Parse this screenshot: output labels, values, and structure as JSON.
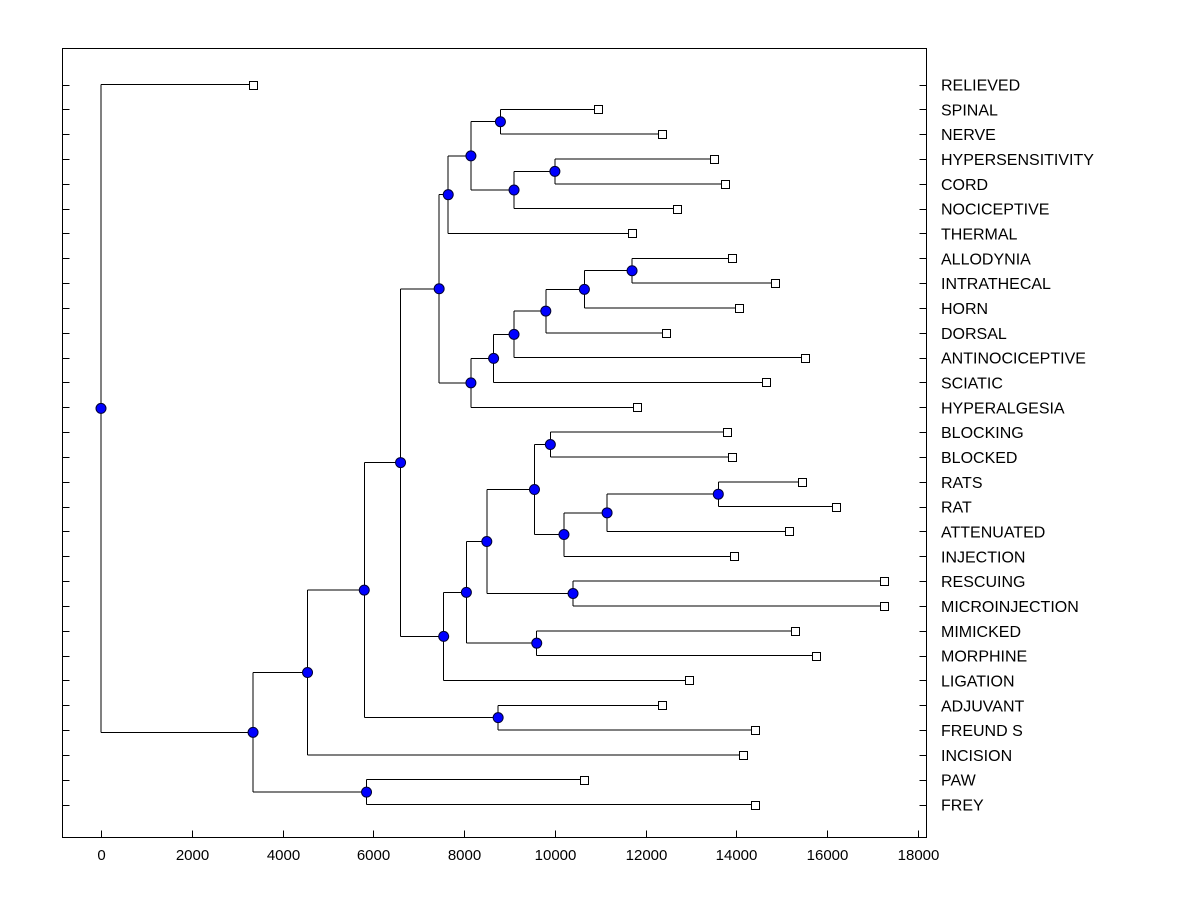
{
  "chart_data": {
    "type": "dendrogram",
    "title": "",
    "xlabel": "",
    "ylabel": "",
    "xlim": [
      -850,
      18000
    ],
    "x_ticks": [
      0,
      2000,
      4000,
      6000,
      8000,
      10000,
      12000,
      14000,
      16000,
      18000
    ],
    "x_tick_labels": [
      "0",
      "2000",
      "4000",
      "6000",
      "8000",
      "10000",
      "12000",
      "14000",
      "16000",
      "18000"
    ],
    "leaves": [
      {
        "label": "RELIEVED",
        "value": 3350
      },
      {
        "label": "SPINAL",
        "value": 10950
      },
      {
        "label": "NERVE",
        "value": 12350
      },
      {
        "label": "HYPERSENSITIVITY",
        "value": 13500
      },
      {
        "label": "CORD",
        "value": 13750
      },
      {
        "label": "NOCICEPTIVE",
        "value": 12700
      },
      {
        "label": "THERMAL",
        "value": 11700
      },
      {
        "label": "ALLODYNIA",
        "value": 13900
      },
      {
        "label": "INTRATHECAL",
        "value": 14850
      },
      {
        "label": "HORN",
        "value": 14050
      },
      {
        "label": "DORSAL",
        "value": 12450
      },
      {
        "label": "ANTINOCICEPTIVE",
        "value": 15500
      },
      {
        "label": "SCIATIC",
        "value": 14650
      },
      {
        "label": "HYPERALGESIA",
        "value": 11800
      },
      {
        "label": "BLOCKING",
        "value": 13800
      },
      {
        "label": "BLOCKED",
        "value": 13900
      },
      {
        "label": "RATS",
        "value": 15450
      },
      {
        "label": "RAT",
        "value": 16200
      },
      {
        "label": "ATTENUATED",
        "value": 15150
      },
      {
        "label": "INJECTION",
        "value": 13950
      },
      {
        "label": "RESCUING",
        "value": 17250
      },
      {
        "label": "MICROINJECTION",
        "value": 17250
      },
      {
        "label": "MIMICKED",
        "value": 15300
      },
      {
        "label": "MORPHINE",
        "value": 15750
      },
      {
        "label": "LIGATION",
        "value": 12950
      },
      {
        "label": "ADJUVANT",
        "value": 12350
      },
      {
        "label": "FREUND S",
        "value": 14400
      },
      {
        "label": "INCISION",
        "value": 14150
      },
      {
        "label": "PAW",
        "value": 10650
      },
      {
        "label": "FREY",
        "value": 14400
      }
    ],
    "merges": [
      {
        "id": "m1",
        "value": 8800,
        "children": [
          "L1",
          "L2"
        ]
      },
      {
        "id": "m2",
        "value": 10000,
        "children": [
          "L3",
          "L4"
        ]
      },
      {
        "id": "m3",
        "value": 9100,
        "children": [
          "m2",
          "L5"
        ]
      },
      {
        "id": "m4",
        "value": 8150,
        "children": [
          "m1",
          "m3"
        ]
      },
      {
        "id": "m5",
        "value": 7650,
        "children": [
          "m4",
          "L6"
        ]
      },
      {
        "id": "m6",
        "value": 11700,
        "children": [
          "L7",
          "L8"
        ]
      },
      {
        "id": "m7",
        "value": 10650,
        "children": [
          "m6",
          "L9"
        ]
      },
      {
        "id": "m8",
        "value": 9800,
        "children": [
          "m7",
          "L10"
        ]
      },
      {
        "id": "m9",
        "value": 9100,
        "children": [
          "m8",
          "L11"
        ]
      },
      {
        "id": "m10",
        "value": 8650,
        "children": [
          "m9",
          "L12"
        ]
      },
      {
        "id": "m11",
        "value": 8150,
        "children": [
          "m10",
          "L13"
        ]
      },
      {
        "id": "m12",
        "value": 7450,
        "children": [
          "m5",
          "m11"
        ]
      },
      {
        "id": "m13",
        "value": 9900,
        "children": [
          "L14",
          "L15"
        ]
      },
      {
        "id": "m14",
        "value": 13600,
        "children": [
          "L16",
          "L17"
        ]
      },
      {
        "id": "m15",
        "value": 11150,
        "children": [
          "m14",
          "L18"
        ]
      },
      {
        "id": "m16",
        "value": 10200,
        "children": [
          "m15",
          "L19"
        ]
      },
      {
        "id": "m17",
        "value": 9550,
        "children": [
          "m13",
          "m16"
        ]
      },
      {
        "id": "m18",
        "value": 10400,
        "children": [
          "L20",
          "L21"
        ]
      },
      {
        "id": "m19",
        "value": 8500,
        "children": [
          "m17",
          "m18"
        ]
      },
      {
        "id": "m20",
        "value": 9600,
        "children": [
          "L22",
          "L23"
        ]
      },
      {
        "id": "m21",
        "value": 8050,
        "children": [
          "m19",
          "m20"
        ]
      },
      {
        "id": "m22",
        "value": 7550,
        "children": [
          "m21",
          "L24"
        ]
      },
      {
        "id": "m23",
        "value": 6600,
        "children": [
          "m12",
          "m22"
        ]
      },
      {
        "id": "m24",
        "value": 8750,
        "children": [
          "L25",
          "L26"
        ]
      },
      {
        "id": "m25",
        "value": 5800,
        "children": [
          "m23",
          "m24"
        ]
      },
      {
        "id": "m26",
        "value": 4550,
        "children": [
          "m25",
          "L27"
        ]
      },
      {
        "id": "m27",
        "value": 5850,
        "children": [
          "L28",
          "L29"
        ]
      },
      {
        "id": "m28",
        "value": 3350,
        "children": [
          "m26",
          "m27"
        ]
      },
      {
        "id": "m29",
        "value": 0,
        "children": [
          "L0",
          "m28"
        ]
      }
    ]
  },
  "colors": {
    "node_fill": "#0000ff",
    "leaf_fill": "#ffffff",
    "line": "#000000",
    "background": "#ffffff"
  }
}
